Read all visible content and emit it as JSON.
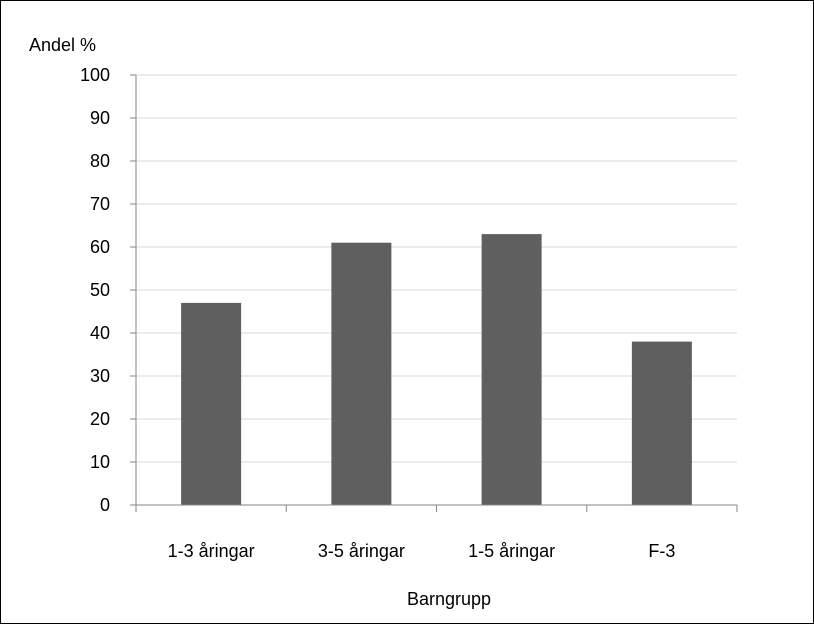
{
  "chart_data": {
    "type": "bar",
    "categories": [
      "1-3 åringar",
      "3-5 åringar",
      "1-5 åringar",
      "F-3"
    ],
    "values": [
      47,
      61,
      63,
      38
    ],
    "xlabel": "Barngrupp",
    "ylabel": "Andel %",
    "ylim": [
      0,
      100
    ],
    "yticks": [
      "0",
      "10",
      "20",
      "30",
      "40",
      "50",
      "60",
      "70",
      "80",
      "90",
      "100"
    ],
    "grid": true,
    "legend": "none",
    "bar_color": "#5f5f5f",
    "grid_color": "#d9d9d9",
    "axis_color": "#868686"
  }
}
